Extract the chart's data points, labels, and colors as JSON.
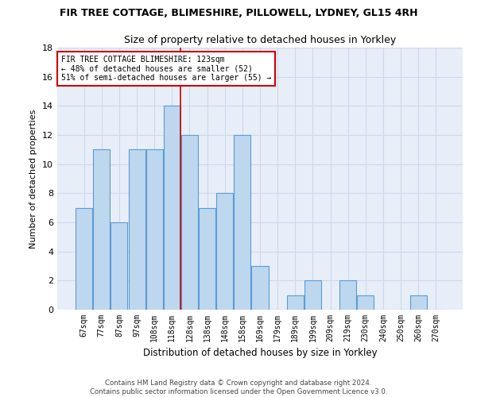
{
  "title1": "FIR TREE COTTAGE, BLIMESHIRE, PILLOWELL, LYDNEY, GL15 4RH",
  "title2": "Size of property relative to detached houses in Yorkley",
  "xlabel": "Distribution of detached houses by size in Yorkley",
  "ylabel": "Number of detached properties",
  "bar_labels": [
    "67sqm",
    "77sqm",
    "87sqm",
    "97sqm",
    "108sqm",
    "118sqm",
    "128sqm",
    "138sqm",
    "148sqm",
    "158sqm",
    "169sqm",
    "179sqm",
    "189sqm",
    "199sqm",
    "209sqm",
    "219sqm",
    "230sqm",
    "240sqm",
    "250sqm",
    "260sqm",
    "270sqm"
  ],
  "bar_heights": [
    7,
    11,
    6,
    11,
    11,
    14,
    12,
    7,
    8,
    12,
    3,
    0,
    1,
    2,
    0,
    2,
    1,
    0,
    0,
    1,
    0
  ],
  "bar_color": "#BDD7EE",
  "bar_edge_color": "#5B9BD5",
  "annotation_text_line1": "FIR TREE COTTAGE BLIMESHIRE: 123sqm",
  "annotation_text_line2": "← 48% of detached houses are smaller (52)",
  "annotation_text_line3": "51% of semi-detached houses are larger (55) →",
  "annotation_box_color": "#ffffff",
  "annotation_box_edge_color": "#cc0000",
  "ylim": [
    0,
    18
  ],
  "yticks": [
    0,
    2,
    4,
    6,
    8,
    10,
    12,
    14,
    16,
    18
  ],
  "footnote1": "Contains HM Land Registry data © Crown copyright and database right 2024.",
  "footnote2": "Contains public sector information licensed under the Open Government Licence v3.0.",
  "grid_color": "#cdd8ec",
  "bg_color": "#e8eef8",
  "title1_fontsize": 9,
  "title2_fontsize": 9,
  "red_line_color": "#cc0000",
  "red_line_x": 5.5
}
